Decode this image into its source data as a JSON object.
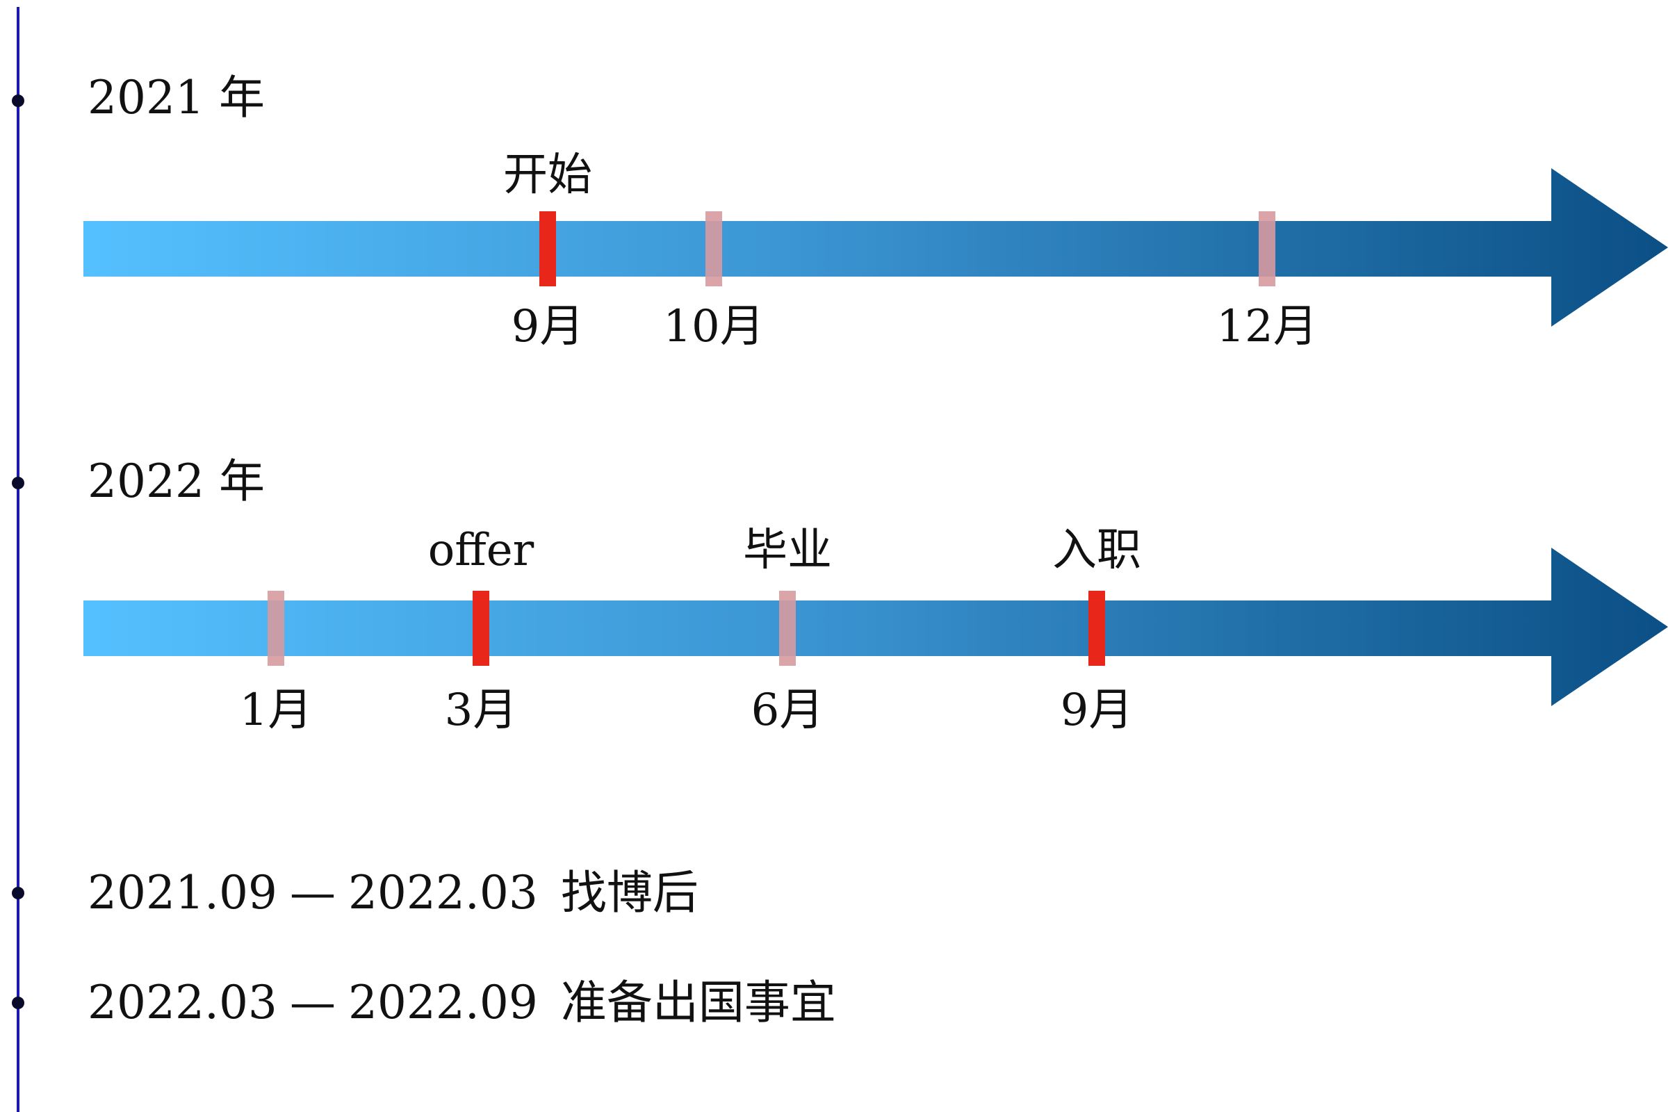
{
  "timelines": [
    {
      "year": "2021 年",
      "events": [
        {
          "label": "开始",
          "month": "9月",
          "pos": 9,
          "major": true
        },
        {
          "label": "",
          "month": "10月",
          "pos": 10,
          "major": false
        },
        {
          "label": "",
          "month": "12月",
          "pos": 12,
          "major": false
        }
      ]
    },
    {
      "year": "2022 年",
      "events": [
        {
          "label": "",
          "month": "1月",
          "pos": 1,
          "major": false
        },
        {
          "label": "offer",
          "month": "3月",
          "pos": 3,
          "major": true
        },
        {
          "label": "毕业",
          "month": "6月",
          "pos": 6,
          "major": false
        },
        {
          "label": "入职",
          "month": "9月",
          "pos": 9,
          "major": true
        }
      ]
    }
  ],
  "periods": [
    {
      "from": "2021.09",
      "dash": "—",
      "to": "2022.03",
      "desc": "找博后"
    },
    {
      "from": "2022.03",
      "dash": "—",
      "to": "2022.09",
      "desc": "准备出国事宜"
    }
  ],
  "colors": {
    "arrow_start": "#55c0ff",
    "arrow_end": "#0b4f85",
    "major_marker": "#e8261a",
    "minor_marker": "#d79aa0",
    "axis_line": "#1a1ab0"
  }
}
